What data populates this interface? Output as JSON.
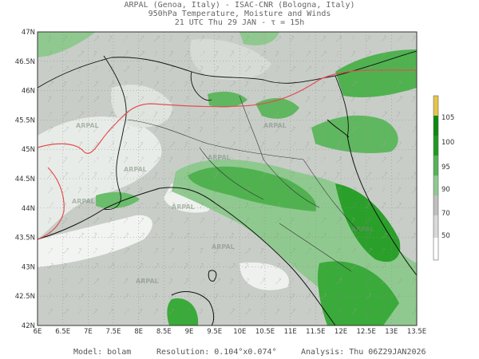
{
  "header": {
    "line1": "ARPAL (Genoa, Italy)  -  ISAC-CNR (Bologna, Italy)",
    "line2": "950hPa Temperature, Moisture and Winds",
    "line3": "21 UTC Thu 29 JAN  -  τ = 15h"
  },
  "axes": {
    "lat_labels": [
      "47N",
      "46.5N",
      "46N",
      "45.5N",
      "45N",
      "44.5N",
      "44N",
      "43.5N",
      "43N",
      "42.5N",
      "42N"
    ],
    "lon_labels": [
      "6E",
      "6.5E",
      "7E",
      "7.5E",
      "8E",
      "8.5E",
      "9E",
      "9.5E",
      "10E",
      "10.5E",
      "11E",
      "11.5E",
      "12E",
      "12.5E",
      "13E",
      "13.5E"
    ]
  },
  "colorbar": {
    "labels": [
      "105",
      "100",
      "95",
      "90",
      "70",
      "50"
    ],
    "colors": [
      "#ffffff",
      "#eeeeee",
      "#bfbfbf",
      "#8fc98f",
      "#55b455",
      "#1e9a1e",
      "#0d8a0d",
      "#e3c64a"
    ]
  },
  "map_watermark": "ARPAL",
  "footer": {
    "model": "Model: bolam",
    "resolution": "Resolution: 0.104°x0.074°",
    "analysis": "Analysis: Thu 06Z29JAN2026"
  }
}
